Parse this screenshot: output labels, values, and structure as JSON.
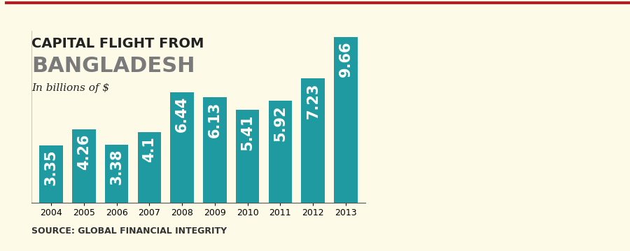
{
  "chart_data": {
    "type": "bar",
    "title": "CAPITAL FLIGHT FROM BANGLADESH",
    "subtitle": "In billions of $",
    "source": "SOURCE: GLOBAL FINANCIAL INTEGRITY",
    "categories": [
      "2004",
      "2005",
      "2006",
      "2007",
      "2008",
      "2009",
      "2010",
      "2011",
      "2012",
      "2013"
    ],
    "values": [
      3.35,
      4.26,
      3.38,
      4.1,
      6.44,
      6.13,
      5.41,
      5.92,
      7.23,
      9.66
    ],
    "color": "#1e9aa0",
    "ylim": [
      0,
      10
    ],
    "data_labels": true,
    "tick_labels": "x",
    "grid": false
  }
}
